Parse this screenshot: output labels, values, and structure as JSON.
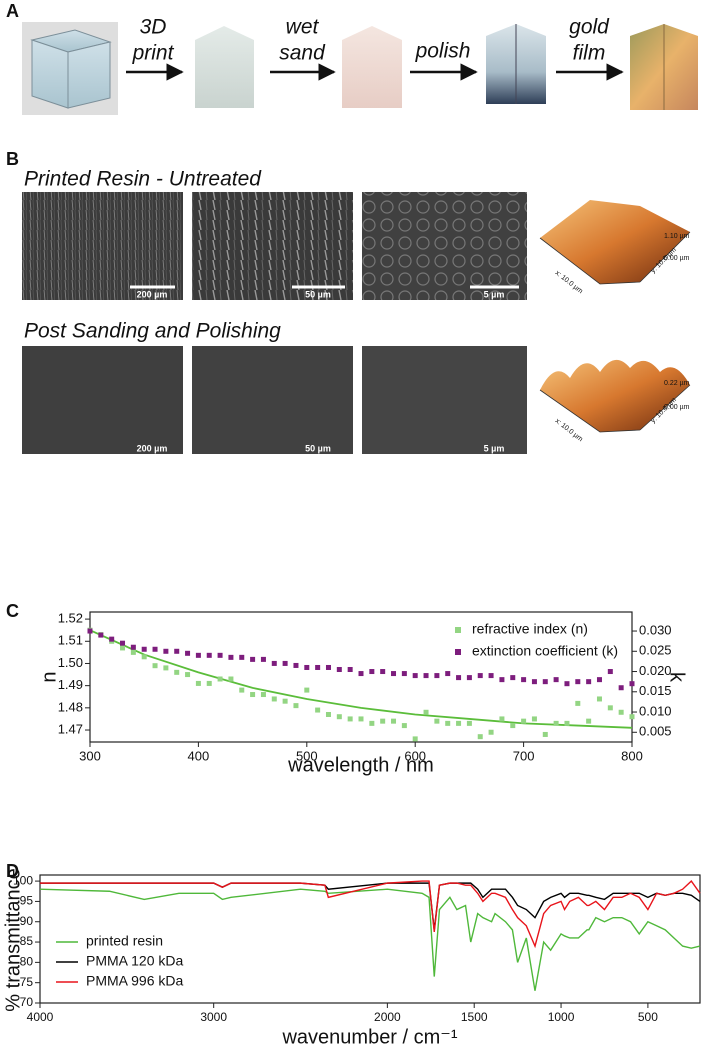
{
  "panel_a": {
    "label": "A",
    "steps": [
      [
        "3D",
        "print"
      ],
      [
        "wet",
        "sand"
      ],
      [
        "polish"
      ],
      [
        "gold",
        "film"
      ]
    ]
  },
  "panel_b": {
    "label": "B",
    "rows": [
      {
        "title": "Printed Resin - Untreated",
        "scale_bars": [
          "200 µm",
          "50 µm",
          "5 µm"
        ],
        "afm": {
          "z_max": "1.10 µm",
          "z_min": "0.00 µm",
          "x_size": "x: 10.0 µm",
          "y_size": "y: 10.0 µm"
        }
      },
      {
        "title": "Post Sanding and Polishing",
        "scale_bars": [
          "200 µm",
          "50 µm",
          "5 µm"
        ],
        "afm": {
          "z_max": "0.22 µm",
          "z_min": "0.00 µm",
          "x_size": "x: 10.0 µm",
          "y_size": "y: 10.0 µm"
        }
      }
    ]
  },
  "chart_data": [
    {
      "type": "scatter",
      "panel_label": "C",
      "x_label": "wavelength / nm",
      "y_label": "n",
      "y2_label": "k",
      "xlim": [
        300,
        800
      ],
      "xticks": [
        300,
        400,
        500,
        600,
        700,
        800
      ],
      "ylim": [
        1.4646,
        1.5232
      ],
      "yticks": [
        1.47,
        1.48,
        1.49,
        {
          "value": 1.5,
          "label": "1.50"
        },
        1.51,
        1.52
      ],
      "y2lim": [
        0.0026,
        0.0347
      ],
      "y2ticks": [
        0.005,
        {
          "value": 0.01,
          "label": "0.010"
        },
        0.015,
        {
          "value": 0.02,
          "label": "0.020"
        },
        0.025,
        {
          "value": 0.03,
          "label": "0.030"
        }
      ],
      "legend": "upper right",
      "x": [
        300,
        310,
        320,
        330,
        340,
        350,
        360,
        370,
        380,
        390,
        400,
        410,
        420,
        430,
        440,
        450,
        460,
        470,
        480,
        490,
        500,
        510,
        520,
        530,
        540,
        550,
        560,
        570,
        580,
        590,
        600,
        610,
        620,
        630,
        640,
        650,
        660,
        670,
        680,
        690,
        700,
        710,
        720,
        730,
        740,
        750,
        760,
        770,
        780,
        790,
        800
      ],
      "series": [
        {
          "name": "refractive index (n)",
          "color": "#93d583",
          "values": [
            1.515,
            1.513,
            1.51,
            1.507,
            1.505,
            1.503,
            1.499,
            1.498,
            1.496,
            1.495,
            1.491,
            1.491,
            1.493,
            1.493,
            1.488,
            1.486,
            1.486,
            1.484,
            1.483,
            1.481,
            1.488,
            1.479,
            1.477,
            1.476,
            1.475,
            1.475,
            1.473,
            1.474,
            1.474,
            1.472,
            1.466,
            1.478,
            1.474,
            1.473,
            1.473,
            1.473,
            1.467,
            1.469,
            1.475,
            1.472,
            1.474,
            1.475,
            1.468,
            1.473,
            1.473,
            1.482,
            1.474,
            1.484,
            1.48,
            1.478,
            1.476
          ]
        },
        {
          "name": "extinction coefficient (k)",
          "color": "#7d1d7d",
          "axis": "y2",
          "values": [
            0.03,
            0.029,
            0.028,
            0.027,
            0.026,
            0.0255,
            0.0255,
            0.025,
            0.025,
            0.0245,
            0.024,
            0.024,
            0.024,
            0.0235,
            0.0235,
            0.023,
            0.023,
            0.022,
            0.022,
            0.0215,
            0.021,
            0.021,
            0.021,
            0.0205,
            0.0205,
            0.0195,
            0.02,
            0.02,
            0.0195,
            0.0195,
            0.019,
            0.019,
            0.019,
            0.0195,
            0.0185,
            0.0185,
            0.019,
            0.019,
            0.018,
            0.0185,
            0.018,
            0.0175,
            0.0175,
            0.018,
            0.017,
            0.0175,
            0.0175,
            0.018,
            0.02,
            0.016,
            0.017
          ]
        }
      ],
      "fit": {
        "color": "#5bbd3a",
        "x": [
          300,
          350,
          400,
          450,
          500,
          550,
          600,
          650,
          700,
          750,
          800
        ],
        "values": [
          1.515,
          1.504,
          1.496,
          1.489,
          1.484,
          1.48,
          1.477,
          1.475,
          1.473,
          1.472,
          1.471
        ]
      }
    },
    {
      "type": "line",
      "panel_label": "D",
      "x_label": "wavenumber / cm⁻¹",
      "y_label": "% transmittance",
      "xlim": [
        4000,
        200
      ],
      "xticks": [
        4000,
        3000,
        2000,
        1500,
        1000,
        500
      ],
      "ylim": [
        70,
        101.5
      ],
      "yticks": [
        70,
        75,
        80,
        85,
        90,
        95,
        100
      ],
      "legend": "lower left",
      "x": [
        4000,
        3600,
        3400,
        3200,
        3000,
        2950,
        2900,
        2500,
        2360,
        2340,
        2000,
        1800,
        1760,
        1730,
        1700,
        1640,
        1600,
        1550,
        1520,
        1480,
        1450,
        1400,
        1380,
        1320,
        1280,
        1250,
        1200,
        1150,
        1100,
        1060,
        1000,
        980,
        950,
        900,
        850,
        840,
        800,
        750,
        700,
        650,
        600,
        550,
        500,
        450,
        400,
        350,
        300,
        250,
        200
      ],
      "series": [
        {
          "name": "printed resin",
          "color": "#4fb83a",
          "values": [
            98,
            97.5,
            95.5,
            97,
            97,
            95.5,
            96,
            98,
            97.5,
            97,
            98,
            97,
            96,
            76.5,
            93,
            96,
            93,
            94,
            85,
            92,
            91,
            90,
            92,
            90,
            88,
            80,
            86,
            73,
            85,
            83,
            87,
            86.5,
            86,
            86,
            88,
            88,
            91,
            90,
            91,
            91,
            90,
            87,
            90,
            89,
            88,
            86,
            84,
            83.5,
            84
          ]
        },
        {
          "name": "PMMA 120 kDa",
          "color": "#000000",
          "values": [
            99.5,
            99.5,
            99.5,
            99.5,
            99.5,
            98.5,
            99.5,
            99.5,
            99,
            98,
            99.5,
            99.5,
            99.5,
            88,
            99,
            99.5,
            99.5,
            99.5,
            99.5,
            98,
            96,
            98,
            98,
            98,
            96,
            94,
            93,
            91,
            95,
            96,
            97,
            96,
            97,
            97,
            96.5,
            96.5,
            96,
            95.5,
            97,
            97,
            97,
            97,
            96,
            97,
            96.5,
            97,
            97,
            96.5,
            95
          ]
        },
        {
          "name": "PMMA 996 kDa",
          "color": "#e8141b",
          "values": [
            99.5,
            99.5,
            99.5,
            99.5,
            99.5,
            98.5,
            99.5,
            99.5,
            99,
            96,
            99.5,
            100,
            100,
            87.5,
            99,
            99.5,
            99.5,
            99,
            99,
            97,
            95,
            97,
            97,
            96,
            93,
            91,
            89,
            84,
            92,
            94,
            95,
            93,
            95,
            96,
            94,
            94,
            95,
            93,
            96,
            96,
            97,
            96,
            93,
            97,
            96.5,
            97,
            98,
            100,
            97
          ]
        }
      ]
    }
  ]
}
